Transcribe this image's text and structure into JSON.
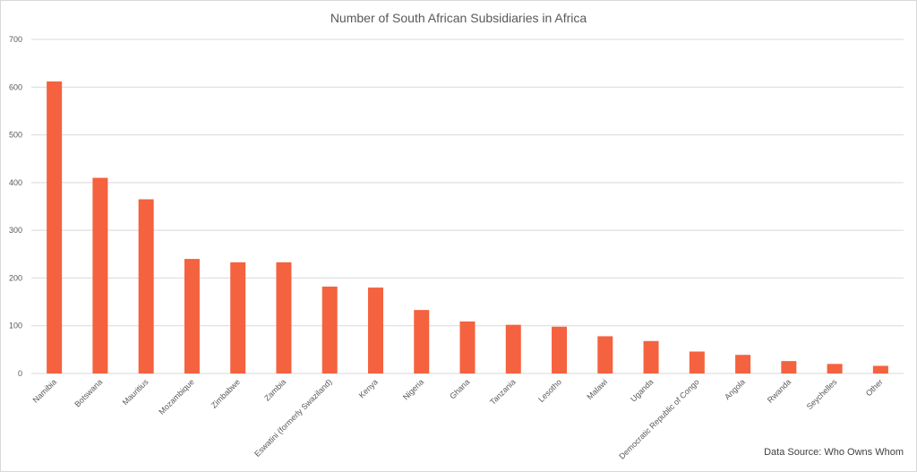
{
  "chart_data": {
    "type": "bar",
    "title": "Number of South African Subsidiaries in Africa",
    "source_note": "Data Source: Who Owns Whom",
    "xlabel": "",
    "ylabel": "",
    "ylim": [
      0,
      700
    ],
    "yticks": [
      0,
      100,
      200,
      300,
      400,
      500,
      600,
      700
    ],
    "grid": true,
    "legend": "none",
    "bar_color": "#F4623F",
    "categories": [
      "Namibia",
      "Botswana",
      "Mauritius",
      "Mozambique",
      "Zimbabwe",
      "Zambia",
      "Eswatini (formerly Swaziland)",
      "Kenya",
      "Nigeria",
      "Ghana",
      "Tanzania",
      "Lesotho",
      "Malawi",
      "Uganda",
      "Democratic Republic of Congo",
      "Angola",
      "Rwanda",
      "Seychelles",
      "Other"
    ],
    "values": [
      612,
      410,
      365,
      240,
      233,
      233,
      182,
      180,
      133,
      109,
      102,
      98,
      78,
      68,
      46,
      39,
      26,
      20,
      16
    ]
  }
}
